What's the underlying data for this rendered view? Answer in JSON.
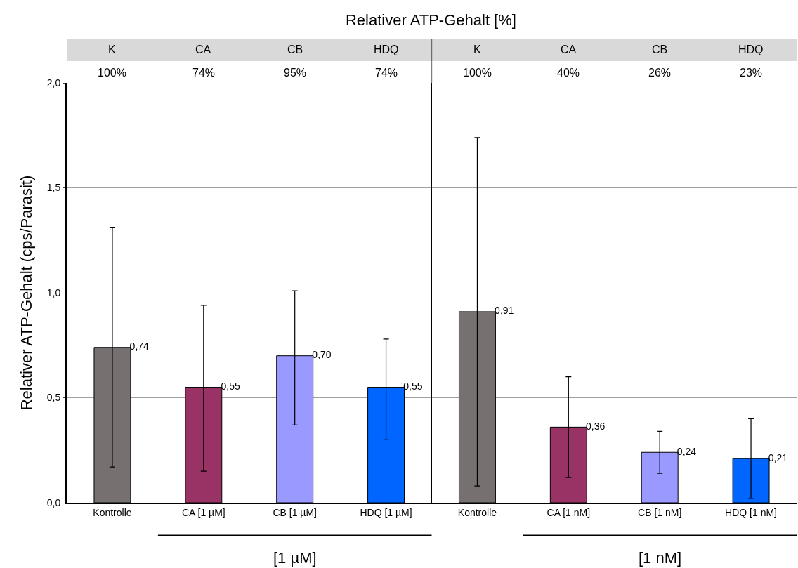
{
  "chart_data": [
    {
      "type": "bar",
      "title": "Relativer ATP-Gehalt [%]",
      "ylabel": "Relativer ATP-Gehalt (cps/Parasit)",
      "categories": [
        "Kontrolle",
        "CA [1 µM]",
        "CB [1 µM]",
        "HDQ [1 µM]"
      ],
      "values": [
        0.74,
        0.55,
        0.7,
        0.55
      ],
      "colors": [
        "#767170",
        "#993366",
        "#9999ff",
        "#0066ff"
      ],
      "errors": [
        [
          0.17,
          1.31
        ],
        [
          0.15,
          0.94
        ],
        [
          0.37,
          1.01
        ],
        [
          0.3,
          0.78
        ]
      ],
      "value_labels": [
        "0,74",
        "0,55",
        "0,70",
        "0,55"
      ],
      "ylim": [
        0,
        2
      ],
      "yticks": [
        {
          "value": 0,
          "label": "0,0"
        },
        {
          "value": 0.5,
          "label": "0,5"
        },
        {
          "value": 1,
          "label": "1,0"
        },
        {
          "value": 1.5,
          "label": "1,5"
        },
        {
          "value": 2,
          "label": "2,0"
        }
      ],
      "grid": "y",
      "legend": false,
      "annotations": [
        "K",
        "CA",
        "CB",
        "HDQ",
        "100%",
        "74%",
        "95%",
        "74%",
        "[1 µM]"
      ]
    },
    {
      "type": "bar",
      "categories": [
        "Kontrolle",
        "CA [1 nM]",
        "CB [1 nM]",
        "HDQ [1 nM]"
      ],
      "values": [
        0.91,
        0.36,
        0.24,
        0.21
      ],
      "colors": [
        "#767170",
        "#993366",
        "#9999ff",
        "#0066ff"
      ],
      "errors": [
        [
          0.08,
          1.74
        ],
        [
          0.12,
          0.6
        ],
        [
          0.14,
          0.34
        ],
        [
          0.02,
          0.4
        ]
      ],
      "value_labels": [
        "0,91",
        "0,36",
        "0,24",
        "0,21"
      ],
      "ylim": [
        0,
        2
      ],
      "grid": "y",
      "tick_labels": "x",
      "legend": false,
      "annotations": [
        "K",
        "CA",
        "CB",
        "HDQ",
        "100%",
        "40%",
        "26%",
        "23%",
        "[1 nM]"
      ]
    }
  ]
}
